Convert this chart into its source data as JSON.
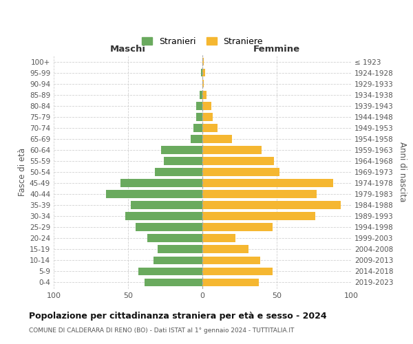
{
  "age_groups": [
    "100+",
    "95-99",
    "90-94",
    "85-89",
    "80-84",
    "75-79",
    "70-74",
    "65-69",
    "60-64",
    "55-59",
    "50-54",
    "45-49",
    "40-44",
    "35-39",
    "30-34",
    "25-29",
    "20-24",
    "15-19",
    "10-14",
    "5-9",
    "0-4"
  ],
  "birth_years": [
    "≤ 1923",
    "1924-1928",
    "1929-1933",
    "1934-1938",
    "1939-1943",
    "1944-1948",
    "1949-1953",
    "1954-1958",
    "1959-1963",
    "1964-1968",
    "1969-1973",
    "1974-1978",
    "1979-1983",
    "1984-1988",
    "1989-1993",
    "1994-1998",
    "1999-2003",
    "2004-2008",
    "2009-2013",
    "2014-2018",
    "2019-2023"
  ],
  "maschi": [
    0,
    1,
    0,
    2,
    4,
    4,
    6,
    8,
    28,
    26,
    32,
    55,
    65,
    48,
    52,
    45,
    37,
    30,
    33,
    43,
    39
  ],
  "femmine": [
    1,
    2,
    1,
    3,
    6,
    7,
    10,
    20,
    40,
    48,
    52,
    88,
    77,
    93,
    76,
    47,
    22,
    31,
    39,
    47,
    38
  ],
  "color_maschi": "#6aaa5e",
  "color_femmine": "#f5b731",
  "title": "Popolazione per cittadinanza straniera per età e sesso - 2024",
  "subtitle": "COMUNE DI CALDERARA DI RENO (BO) - Dati ISTAT al 1° gennaio 2024 - TUTTITALIA.IT",
  "xlabel_left": "Maschi",
  "xlabel_right": "Femmine",
  "ylabel_left": "Fasce di età",
  "ylabel_right": "Anni di nascita",
  "legend_maschi": "Stranieri",
  "legend_femmine": "Straniere",
  "xlim": 100,
  "background_color": "#ffffff",
  "grid_color": "#cccccc"
}
